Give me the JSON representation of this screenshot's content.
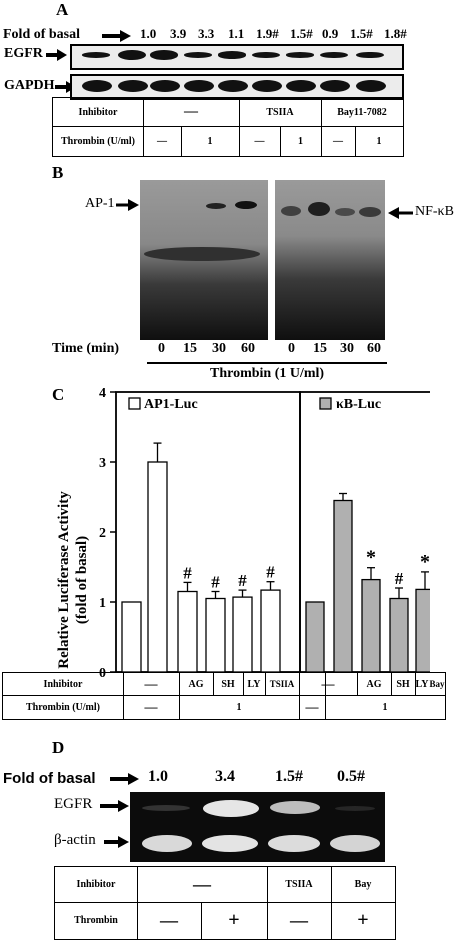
{
  "panelA": {
    "letter": "A",
    "fold_label": "Fold of basal",
    "folds": [
      "1.0",
      "3.9",
      "3.3",
      "1.1",
      "1.9#",
      "1.5#",
      "0.9",
      "1.5#",
      "1.8#"
    ],
    "fold_values": [
      1.0,
      3.9,
      3.3,
      1.1,
      1.9,
      1.5,
      0.9,
      1.5,
      1.8
    ],
    "row1": "EGFR",
    "row2": "GAPDH",
    "inhibitor_label": "Inhibitor",
    "thrombin_label": "Thrombin (U/ml)",
    "inhibitors": [
      "—",
      "TSIIA",
      "Bay11-7082"
    ],
    "thrombin": [
      "—",
      "1",
      "—",
      "1",
      "—",
      "1"
    ]
  },
  "panelB": {
    "letter": "B",
    "left_label": "AP-1",
    "right_label": "NF-κB",
    "time_label": "Time (min)",
    "times_left": [
      "0",
      "15",
      "30",
      "60"
    ],
    "times_right": [
      "0",
      "15",
      "30",
      "60"
    ],
    "thrombin_label": "Thrombin (1 U/ml)"
  },
  "panelC": {
    "letter": "C",
    "ylabel_line1": "Relative Luciferase Activity",
    "ylabel_line2": "(fold of basal)",
    "legend_left": "AP1-Luc",
    "legend_right": "κB-Luc",
    "inhibitor_label": "Inhibitor",
    "thrombin_label": "Thrombin (U/ml)",
    "inhibitors_left": [
      "—",
      "—",
      "AG",
      "SH",
      "LY",
      "TSIIA"
    ],
    "inhibitors_right": [
      "—",
      "—",
      "AG",
      "SH",
      "LY",
      "Bay"
    ],
    "thrombin_left": [
      "—",
      "1"
    ],
    "thrombin_right": [
      "—",
      "1"
    ]
  },
  "chart_data": {
    "type": "bar",
    "ylabel": "Relative Luciferase Activity (fold of basal)",
    "ylim": [
      0,
      4
    ],
    "yticks": [
      "0",
      "1",
      "2",
      "3",
      "4"
    ],
    "series": [
      {
        "name": "AP1-Luc",
        "color": "#ffffff",
        "values": [
          1.0,
          3.0,
          1.15,
          1.05,
          1.07,
          1.17
        ],
        "errors": [
          0,
          0.27,
          0.13,
          0.1,
          0.1,
          0.12
        ],
        "marks": [
          "",
          "",
          "#",
          "#",
          "#",
          "#"
        ]
      },
      {
        "name": "κB-Luc",
        "color": "#b0b0b0",
        "values": [
          1.0,
          2.45,
          1.32,
          1.05,
          1.18,
          0.75
        ],
        "errors": [
          0,
          0.1,
          0.17,
          0.15,
          0.25,
          0.05
        ],
        "marks": [
          "",
          "",
          "*",
          "#",
          "*",
          "#"
        ]
      }
    ]
  },
  "panelD": {
    "letter": "D",
    "fold_label": "Fold of basal",
    "folds": [
      "1.0",
      "3.4",
      "1.5#",
      "0.5#"
    ],
    "row1": "EGFR",
    "row2": "β-actin",
    "inhibitor_label": "Inhibitor",
    "thrombin_label": "Thrombin",
    "inhibitors": [
      "—",
      "TSIIA",
      "Bay"
    ],
    "thrombin": [
      "—",
      "+",
      "—",
      "+"
    ]
  }
}
